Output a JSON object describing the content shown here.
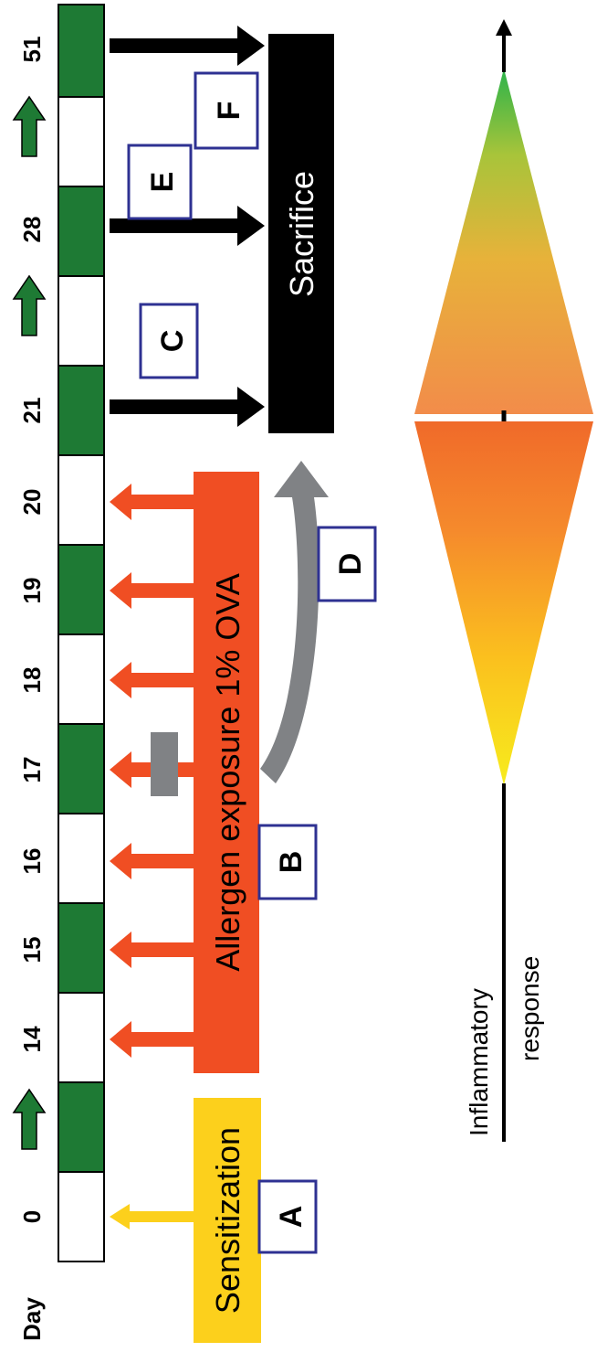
{
  "timeline": {
    "day_label": "Day",
    "days": [
      "0",
      "14",
      "15",
      "16",
      "17",
      "18",
      "19",
      "20",
      "21",
      "28",
      "51"
    ]
  },
  "phases": {
    "sensitization": "Sensitization",
    "allergen_exposure": "Allergen exposure 1% OVA",
    "sacrifice": "Sacrifice"
  },
  "panels": [
    "A",
    "B",
    "C",
    "D",
    "E",
    "F"
  ],
  "response": {
    "label_line1": "Inflammatory",
    "label_line2": "response"
  },
  "colors": {
    "segment_green": "#1e7a34",
    "sensitization_yellow": "#fcd01c",
    "allergen_red": "#f04e23",
    "sacrifice_black": "#000000",
    "curved_arrow_gray": "#808285",
    "panel_border_blue": "#2e3192"
  }
}
